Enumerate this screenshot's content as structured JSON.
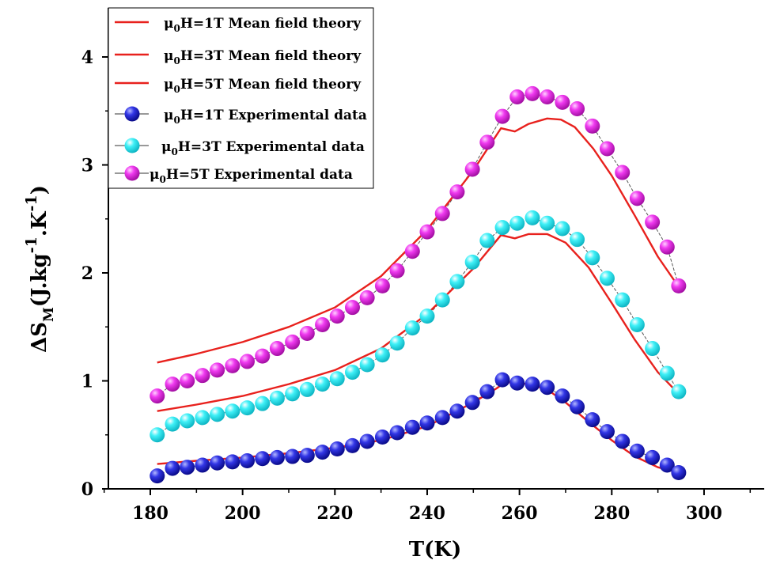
{
  "chart_data": {
    "type": "line",
    "xlabel": "T(K)",
    "ylabel_parts": {
      "delta": "ΔS",
      "sub": "M",
      "open": "(J.kg",
      "sup1": "-1",
      "mid": ".K",
      "sup2": "-1",
      "close": ")"
    },
    "xlim": [
      170,
      312
    ],
    "ylim": [
      0,
      4.4
    ],
    "x_ticks": [
      180,
      200,
      220,
      240,
      260,
      280,
      300
    ],
    "y_ticks": [
      0,
      1,
      2,
      3,
      4
    ],
    "legend_position": "top-left",
    "series": [
      {
        "name": "μ0H=1T Mean field theory",
        "legend_prefix": "μ",
        "legend_sub": "0",
        "legend_rest": "H=1T Mean field theory",
        "kind": "line",
        "color": "#e8211d",
        "x": [
          181.5,
          190,
          200,
          210,
          220,
          230,
          240,
          250,
          255,
          257,
          259,
          262,
          266,
          270,
          275,
          280,
          285,
          290,
          294.5
        ],
        "y": [
          0.23,
          0.26,
          0.29,
          0.33,
          0.38,
          0.45,
          0.58,
          0.8,
          0.93,
          0.99,
          0.98,
          0.97,
          0.92,
          0.8,
          0.62,
          0.45,
          0.3,
          0.2,
          0.15
        ]
      },
      {
        "name": "μ0H=3T Mean field theory",
        "legend_prefix": "μ",
        "legend_sub": "0",
        "legend_rest": "H=3T Mean field theory",
        "kind": "line",
        "color": "#e8211d",
        "x": [
          181.5,
          190,
          200,
          210,
          220,
          230,
          240,
          250,
          256,
          259,
          262,
          266,
          270,
          275,
          280,
          285,
          290,
          294.5
        ],
        "y": [
          0.72,
          0.78,
          0.86,
          0.97,
          1.1,
          1.3,
          1.62,
          2.04,
          2.35,
          2.32,
          2.36,
          2.36,
          2.28,
          2.05,
          1.72,
          1.38,
          1.08,
          0.88
        ]
      },
      {
        "name": "μ0H=5T Mean field theory",
        "legend_prefix": "μ",
        "legend_sub": "0",
        "legend_rest": "H=5T Mean field theory",
        "kind": "line",
        "color": "#e8211d",
        "x": [
          181.5,
          190,
          200,
          210,
          220,
          230,
          240,
          250,
          256,
          259,
          262,
          266,
          269,
          272,
          276,
          280,
          285,
          290,
          294.5
        ],
        "y": [
          1.17,
          1.25,
          1.36,
          1.5,
          1.68,
          1.97,
          2.4,
          2.95,
          3.34,
          3.31,
          3.38,
          3.43,
          3.42,
          3.35,
          3.15,
          2.9,
          2.53,
          2.15,
          1.87
        ]
      },
      {
        "name": "μ0H=1T Experimental data",
        "legend_prefix": "μ",
        "legend_sub": "0",
        "legend_rest": "H=1T Experimental data",
        "kind": "markers",
        "color": "#1d1fce",
        "x": [
          181.5,
          184.8,
          188,
          191.3,
          194.5,
          197.8,
          201,
          204.3,
          207.5,
          210.8,
          214,
          217.3,
          220.5,
          223.8,
          227,
          230.3,
          233.5,
          236.8,
          240,
          243.3,
          246.5,
          249.8,
          253,
          256.3,
          259.5,
          262.8,
          266,
          269.3,
          272.5,
          275.8,
          279,
          282.3,
          285.5,
          288.8,
          292,
          294.5
        ],
        "y": [
          0.12,
          0.19,
          0.2,
          0.22,
          0.24,
          0.25,
          0.26,
          0.28,
          0.29,
          0.3,
          0.31,
          0.34,
          0.37,
          0.4,
          0.44,
          0.48,
          0.52,
          0.57,
          0.61,
          0.66,
          0.72,
          0.8,
          0.9,
          1.01,
          0.98,
          0.97,
          0.94,
          0.86,
          0.76,
          0.64,
          0.53,
          0.44,
          0.35,
          0.29,
          0.22,
          0.15
        ]
      },
      {
        "name": "μ0H=3T Experimental data",
        "legend_prefix": "μ",
        "legend_sub": "0",
        "legend_rest": "H=3T Experimental data",
        "kind": "markers",
        "color": "#2de5ee",
        "x": [
          181.5,
          184.8,
          188,
          191.3,
          194.5,
          197.8,
          201,
          204.3,
          207.5,
          210.8,
          214,
          217.3,
          220.5,
          223.8,
          227,
          230.3,
          233.5,
          236.8,
          240,
          243.3,
          246.5,
          249.8,
          253,
          256.3,
          259.5,
          262.8,
          266,
          269.3,
          272.5,
          275.8,
          279,
          282.3,
          285.5,
          288.8,
          292,
          294.5
        ],
        "y": [
          0.5,
          0.6,
          0.63,
          0.66,
          0.69,
          0.72,
          0.75,
          0.79,
          0.84,
          0.88,
          0.92,
          0.97,
          1.02,
          1.08,
          1.15,
          1.24,
          1.35,
          1.49,
          1.6,
          1.75,
          1.92,
          2.1,
          2.3,
          2.42,
          2.46,
          2.51,
          2.46,
          2.41,
          2.31,
          2.14,
          1.95,
          1.75,
          1.52,
          1.3,
          1.07,
          0.9
        ]
      },
      {
        "name": "μ0H=5T Experimental data",
        "legend_prefix": "μ",
        "legend_sub": "0",
        "legend_rest": "H=5T Experimental data",
        "kind": "markers",
        "color": "#ee22ee",
        "x": [
          181.5,
          184.8,
          188,
          191.3,
          194.5,
          197.8,
          201,
          204.3,
          207.5,
          210.8,
          214,
          217.3,
          220.5,
          223.8,
          227,
          230.3,
          233.5,
          236.8,
          240,
          243.3,
          246.5,
          249.8,
          253,
          256.3,
          259.5,
          262.8,
          266,
          269.3,
          272.5,
          275.8,
          279,
          282.3,
          285.5,
          288.8,
          292,
          294.5
        ],
        "y": [
          0.86,
          0.97,
          1.0,
          1.05,
          1.1,
          1.14,
          1.18,
          1.23,
          1.3,
          1.36,
          1.44,
          1.52,
          1.6,
          1.68,
          1.77,
          1.88,
          2.02,
          2.2,
          2.38,
          2.55,
          2.75,
          2.96,
          3.21,
          3.45,
          3.63,
          3.66,
          3.63,
          3.58,
          3.52,
          3.36,
          3.15,
          2.93,
          2.69,
          2.47,
          2.24,
          1.88
        ]
      }
    ]
  }
}
